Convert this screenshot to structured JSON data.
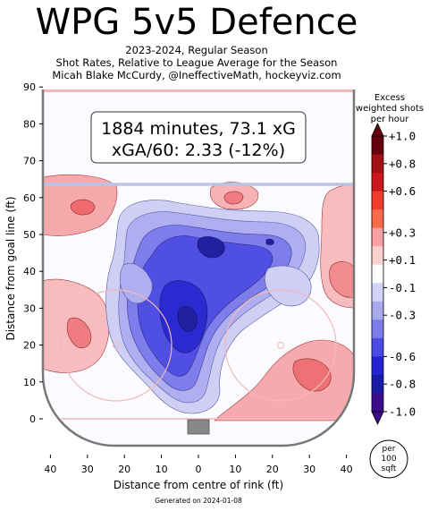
{
  "header": {
    "title": "WPG 5v5 Defence",
    "subtitle_lines": [
      "2023-2024, Regular Season",
      "Shot Rates, Relative to League Average for the Season",
      "Micah Blake McCurdy, @IneffectiveMath, hockeyviz.com"
    ]
  },
  "stats_box": {
    "line1": "1884 minutes, 73.1 xG",
    "line2": "xGA/60: 2.33 (-12%)"
  },
  "footer": {
    "generated": "Generated on 2024-01-08",
    "unit_line1": "per",
    "unit_line2": "100",
    "unit_line3": "sqft"
  },
  "colorbar": {
    "title_lines": [
      "Excess",
      "weighted shots",
      "per hour"
    ],
    "labels": [
      "+1.0",
      "+0.8",
      "+0.6",
      "+0.3",
      "+0.1",
      "-0.1",
      "-0.3",
      "-0.6",
      "-0.8",
      "-1.0"
    ],
    "label_values": [
      1.0,
      0.8,
      0.6,
      0.3,
      0.1,
      -0.1,
      -0.3,
      -0.6,
      -0.8,
      -1.0
    ],
    "band_colors": [
      "#67000d",
      "#a50f15",
      "#cb181d",
      "#ef3b2c",
      "#fb6a4a",
      "#fc9fa0",
      "#fdd0d0",
      "#ffffff",
      "#d3d3f7",
      "#a9a9ee",
      "#7b7bea",
      "#4a4ae6",
      "#2424d4",
      "#1a1aa8",
      "#3c0a8a"
    ]
  },
  "chart_data": {
    "type": "heatmap",
    "xlabel": "Distance from centre of rink (ft)",
    "ylabel": "Distance from goal line (ft)",
    "xlim": [
      -42,
      42
    ],
    "ylim": [
      -5,
      90
    ],
    "x_ticks": [
      40,
      30,
      20,
      10,
      0,
      10,
      20,
      30,
      40
    ],
    "x_tick_values": [
      -40,
      -30,
      -20,
      -10,
      0,
      10,
      20,
      30,
      40
    ],
    "y_ticks": [
      0,
      10,
      20,
      30,
      40,
      50,
      60,
      70,
      80,
      90
    ],
    "blue_line_y": 64,
    "colors": {
      "rink_border": "#777777",
      "goal_line": "#f2b7b7",
      "blue_line": "#b9c4e6",
      "excess": "#e8474f",
      "deficit": "#3b3bd6"
    },
    "regions": [
      {
        "sign": "negative",
        "level": 0.75,
        "x": 0,
        "y": 38
      },
      {
        "sign": "negative",
        "level": 0.7,
        "x": 3,
        "y": 48
      },
      {
        "sign": "negative",
        "level": 0.7,
        "x": -2,
        "y": 27
      },
      {
        "sign": "positive",
        "level": 0.5,
        "x": -32,
        "y": 59
      },
      {
        "sign": "positive",
        "level": 0.45,
        "x": 10,
        "y": 60
      },
      {
        "sign": "positive",
        "level": 0.4,
        "x": 38,
        "y": 52
      },
      {
        "sign": "positive",
        "level": 0.4,
        "x": -33,
        "y": 24
      },
      {
        "sign": "positive",
        "level": 0.45,
        "x": 32,
        "y": 12
      }
    ]
  }
}
